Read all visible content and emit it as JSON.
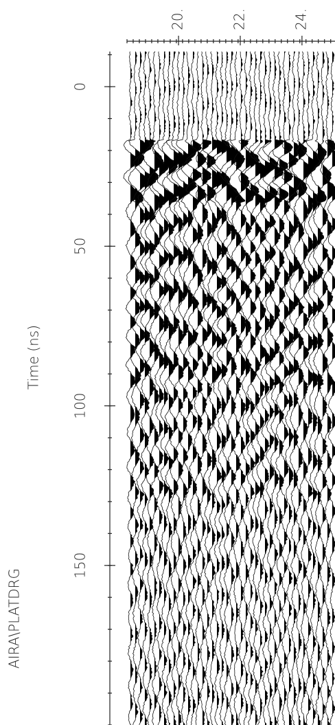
{
  "chart_data": {
    "type": "wiggle",
    "title": "AIRA\\PLATDRG",
    "y_label": "Time (ns)",
    "ylim": [
      -11,
      200
    ],
    "yticks": [
      0,
      50,
      100,
      150
    ],
    "xlim": [
      18.33,
      25.07
    ],
    "xticks": [
      {
        "value": 20,
        "label": "20."
      },
      {
        "value": 22,
        "label": "22."
      },
      {
        "value": 24,
        "label": "24."
      }
    ]
  }
}
